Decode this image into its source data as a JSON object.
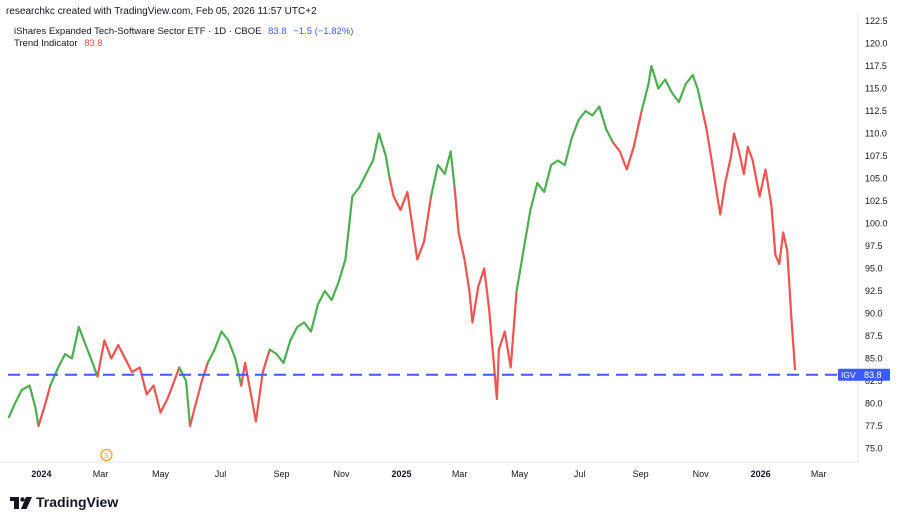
{
  "header": {
    "attribution": "researchkc created with TradingView.com, Feb 05, 2026 11:57 UTC+2"
  },
  "legend": {
    "symbol_name": "iShares Expanded Tech-Software Sector ETF · 1D · CBOE",
    "symbol_last": "83.8",
    "symbol_change": "−1.5 (−1.82%)",
    "indicator_name": "Trend Indicator",
    "indicator_value": "83.8"
  },
  "price_label": {
    "ticker": "IGV",
    "value": "83.8"
  },
  "branding": {
    "name": "TradingView"
  },
  "event_marker": {
    "letter": "S",
    "date": "2024-03-01"
  },
  "colors": {
    "uptrend": "#4caf50",
    "downtrend": "#f05350",
    "price_line": "#3d5afe",
    "accent_change": "#3d5afe",
    "indicator_value": "#f05350",
    "marker": "#f5a623"
  },
  "chart_data": {
    "type": "line",
    "ylim": [
      72.5,
      122.5
    ],
    "y_ticks": [
      "122.5",
      "120.0",
      "117.5",
      "115.0",
      "112.5",
      "110.0",
      "107.5",
      "105.0",
      "102.5",
      "100.0",
      "97.5",
      "95.0",
      "92.5",
      "90.0",
      "87.5",
      "85.0",
      "82.5",
      "80.0",
      "77.5",
      "75.0"
    ],
    "x_ticks": [
      {
        "label": "2024",
        "date": "2024-01-01",
        "bold": true
      },
      {
        "label": "Mar",
        "date": "2024-03-01",
        "bold": false
      },
      {
        "label": "May",
        "date": "2024-05-01",
        "bold": false
      },
      {
        "label": "Jul",
        "date": "2024-07-01",
        "bold": false
      },
      {
        "label": "Sep",
        "date": "2024-09-01",
        "bold": false
      },
      {
        "label": "Nov",
        "date": "2024-11-01",
        "bold": false
      },
      {
        "label": "2025",
        "date": "2025-01-01",
        "bold": true
      },
      {
        "label": "Mar",
        "date": "2025-03-01",
        "bold": false
      },
      {
        "label": "May",
        "date": "2025-05-01",
        "bold": false
      },
      {
        "label": "Jul",
        "date": "2025-07-01",
        "bold": false
      },
      {
        "label": "Sep",
        "date": "2025-09-01",
        "bold": false
      },
      {
        "label": "Nov",
        "date": "2025-11-01",
        "bold": false
      },
      {
        "label": "2026",
        "date": "2026-01-01",
        "bold": true
      },
      {
        "label": "Mar",
        "date": "2026-03-01",
        "bold": false
      }
    ],
    "x_range": [
      "2023-11-28",
      "2026-04-10"
    ],
    "reference_line": {
      "value": 83.2,
      "style": "dashed"
    },
    "series": [
      {
        "points": [
          {
            "date": "2023-11-29",
            "value": 78.5,
            "trend": "up"
          },
          {
            "date": "2023-12-05",
            "value": 80.0,
            "trend": "up"
          },
          {
            "date": "2023-12-12",
            "value": 81.5,
            "trend": "up"
          },
          {
            "date": "2023-12-20",
            "value": 82.0,
            "trend": "up"
          },
          {
            "date": "2023-12-26",
            "value": 79.5,
            "trend": "up"
          },
          {
            "date": "2023-12-29",
            "value": 77.5,
            "trend": "down"
          },
          {
            "date": "2024-01-05",
            "value": 80.0,
            "trend": "down"
          },
          {
            "date": "2024-01-10",
            "value": 82.0,
            "trend": "up"
          },
          {
            "date": "2024-01-18",
            "value": 84.0,
            "trend": "up"
          },
          {
            "date": "2024-01-25",
            "value": 85.5,
            "trend": "up"
          },
          {
            "date": "2024-02-01",
            "value": 85.0,
            "trend": "up"
          },
          {
            "date": "2024-02-08",
            "value": 88.5,
            "trend": "up"
          },
          {
            "date": "2024-02-15",
            "value": 86.5,
            "trend": "up"
          },
          {
            "date": "2024-02-22",
            "value": 84.5,
            "trend": "up"
          },
          {
            "date": "2024-02-27",
            "value": 83.0,
            "trend": "down"
          },
          {
            "date": "2024-03-05",
            "value": 87.0,
            "trend": "down"
          },
          {
            "date": "2024-03-12",
            "value": 85.0,
            "trend": "down"
          },
          {
            "date": "2024-03-19",
            "value": 86.5,
            "trend": "down"
          },
          {
            "date": "2024-03-26",
            "value": 85.0,
            "trend": "down"
          },
          {
            "date": "2024-04-02",
            "value": 83.5,
            "trend": "down"
          },
          {
            "date": "2024-04-10",
            "value": 84.0,
            "trend": "down"
          },
          {
            "date": "2024-04-17",
            "value": 81.0,
            "trend": "down"
          },
          {
            "date": "2024-04-24",
            "value": 82.0,
            "trend": "down"
          },
          {
            "date": "2024-05-01",
            "value": 79.0,
            "trend": "down"
          },
          {
            "date": "2024-05-08",
            "value": 80.5,
            "trend": "down"
          },
          {
            "date": "2024-05-15",
            "value": 82.5,
            "trend": "down"
          },
          {
            "date": "2024-05-20",
            "value": 84.0,
            "trend": "up"
          },
          {
            "date": "2024-05-27",
            "value": 82.5,
            "trend": "up"
          },
          {
            "date": "2024-05-31",
            "value": 77.5,
            "trend": "down"
          },
          {
            "date": "2024-06-06",
            "value": 80.0,
            "trend": "down"
          },
          {
            "date": "2024-06-12",
            "value": 82.5,
            "trend": "down"
          },
          {
            "date": "2024-06-18",
            "value": 84.5,
            "trend": "up"
          },
          {
            "date": "2024-06-25",
            "value": 86.0,
            "trend": "up"
          },
          {
            "date": "2024-07-02",
            "value": 88.0,
            "trend": "up"
          },
          {
            "date": "2024-07-09",
            "value": 87.0,
            "trend": "up"
          },
          {
            "date": "2024-07-16",
            "value": 85.0,
            "trend": "up"
          },
          {
            "date": "2024-07-22",
            "value": 82.0,
            "trend": "down"
          },
          {
            "date": "2024-07-26",
            "value": 84.5,
            "trend": "down"
          },
          {
            "date": "2024-08-01",
            "value": 81.0,
            "trend": "down"
          },
          {
            "date": "2024-08-06",
            "value": 78.0,
            "trend": "down"
          },
          {
            "date": "2024-08-13",
            "value": 83.5,
            "trend": "down"
          },
          {
            "date": "2024-08-20",
            "value": 86.0,
            "trend": "up"
          },
          {
            "date": "2024-08-27",
            "value": 85.5,
            "trend": "up"
          },
          {
            "date": "2024-09-03",
            "value": 84.5,
            "trend": "up"
          },
          {
            "date": "2024-09-10",
            "value": 87.0,
            "trend": "up"
          },
          {
            "date": "2024-09-17",
            "value": 88.5,
            "trend": "up"
          },
          {
            "date": "2024-09-24",
            "value": 89.0,
            "trend": "up"
          },
          {
            "date": "2024-10-01",
            "value": 88.0,
            "trend": "up"
          },
          {
            "date": "2024-10-08",
            "value": 91.0,
            "trend": "up"
          },
          {
            "date": "2024-10-15",
            "value": 92.5,
            "trend": "up"
          },
          {
            "date": "2024-10-22",
            "value": 91.5,
            "trend": "up"
          },
          {
            "date": "2024-10-29",
            "value": 93.5,
            "trend": "up"
          },
          {
            "date": "2024-11-05",
            "value": 96.0,
            "trend": "up"
          },
          {
            "date": "2024-11-12",
            "value": 103.0,
            "trend": "up"
          },
          {
            "date": "2024-11-19",
            "value": 104.0,
            "trend": "up"
          },
          {
            "date": "2024-11-26",
            "value": 105.5,
            "trend": "up"
          },
          {
            "date": "2024-12-03",
            "value": 107.0,
            "trend": "up"
          },
          {
            "date": "2024-12-09",
            "value": 110.0,
            "trend": "up"
          },
          {
            "date": "2024-12-16",
            "value": 107.5,
            "trend": "up"
          },
          {
            "date": "2024-12-20",
            "value": 105.0,
            "trend": "down"
          },
          {
            "date": "2024-12-24",
            "value": 103.0,
            "trend": "down"
          },
          {
            "date": "2024-12-31",
            "value": 101.5,
            "trend": "down"
          },
          {
            "date": "2025-01-07",
            "value": 103.5,
            "trend": "down"
          },
          {
            "date": "2025-01-13",
            "value": 99.0,
            "trend": "down"
          },
          {
            "date": "2025-01-17",
            "value": 96.0,
            "trend": "down"
          },
          {
            "date": "2025-01-24",
            "value": 98.0,
            "trend": "down"
          },
          {
            "date": "2025-01-31",
            "value": 103.0,
            "trend": "up"
          },
          {
            "date": "2025-02-07",
            "value": 106.5,
            "trend": "up"
          },
          {
            "date": "2025-02-14",
            "value": 105.5,
            "trend": "up"
          },
          {
            "date": "2025-02-20",
            "value": 108.0,
            "trend": "up"
          },
          {
            "date": "2025-02-24",
            "value": 104.0,
            "trend": "down"
          },
          {
            "date": "2025-02-28",
            "value": 99.0,
            "trend": "down"
          },
          {
            "date": "2025-03-06",
            "value": 96.0,
            "trend": "down"
          },
          {
            "date": "2025-03-11",
            "value": 92.5,
            "trend": "down"
          },
          {
            "date": "2025-03-14",
            "value": 89.0,
            "trend": "down"
          },
          {
            "date": "2025-03-20",
            "value": 93.0,
            "trend": "down"
          },
          {
            "date": "2025-03-26",
            "value": 95.0,
            "trend": "down"
          },
          {
            "date": "2025-03-31",
            "value": 90.5,
            "trend": "down"
          },
          {
            "date": "2025-04-04",
            "value": 85.5,
            "trend": "down"
          },
          {
            "date": "2025-04-08",
            "value": 80.5,
            "trend": "down"
          },
          {
            "date": "2025-04-10",
            "value": 86.0,
            "trend": "down"
          },
          {
            "date": "2025-04-16",
            "value": 88.0,
            "trend": "down"
          },
          {
            "date": "2025-04-22",
            "value": 84.0,
            "trend": "down"
          },
          {
            "date": "2025-04-28",
            "value": 92.5,
            "trend": "up"
          },
          {
            "date": "2025-05-05",
            "value": 97.0,
            "trend": "up"
          },
          {
            "date": "2025-05-12",
            "value": 101.5,
            "trend": "up"
          },
          {
            "date": "2025-05-19",
            "value": 104.5,
            "trend": "up"
          },
          {
            "date": "2025-05-26",
            "value": 103.5,
            "trend": "up"
          },
          {
            "date": "2025-06-02",
            "value": 106.5,
            "trend": "up"
          },
          {
            "date": "2025-06-09",
            "value": 107.0,
            "trend": "up"
          },
          {
            "date": "2025-06-16",
            "value": 106.5,
            "trend": "up"
          },
          {
            "date": "2025-06-23",
            "value": 109.5,
            "trend": "up"
          },
          {
            "date": "2025-06-30",
            "value": 111.5,
            "trend": "up"
          },
          {
            "date": "2025-07-07",
            "value": 112.5,
            "trend": "up"
          },
          {
            "date": "2025-07-14",
            "value": 112.0,
            "trend": "up"
          },
          {
            "date": "2025-07-21",
            "value": 113.0,
            "trend": "up"
          },
          {
            "date": "2025-07-28",
            "value": 110.5,
            "trend": "up"
          },
          {
            "date": "2025-08-04",
            "value": 109.0,
            "trend": "down"
          },
          {
            "date": "2025-08-11",
            "value": 108.0,
            "trend": "down"
          },
          {
            "date": "2025-08-18",
            "value": 106.0,
            "trend": "down"
          },
          {
            "date": "2025-08-25",
            "value": 108.5,
            "trend": "down"
          },
          {
            "date": "2025-09-02",
            "value": 112.5,
            "trend": "up"
          },
          {
            "date": "2025-09-09",
            "value": 115.5,
            "trend": "up"
          },
          {
            "date": "2025-09-12",
            "value": 117.5,
            "trend": "up"
          },
          {
            "date": "2025-09-19",
            "value": 115.0,
            "trend": "up"
          },
          {
            "date": "2025-09-26",
            "value": 116.0,
            "trend": "up"
          },
          {
            "date": "2025-10-03",
            "value": 114.5,
            "trend": "up"
          },
          {
            "date": "2025-10-10",
            "value": 113.5,
            "trend": "up"
          },
          {
            "date": "2025-10-17",
            "value": 115.5,
            "trend": "up"
          },
          {
            "date": "2025-10-24",
            "value": 116.5,
            "trend": "up"
          },
          {
            "date": "2025-10-29",
            "value": 115.0,
            "trend": "up"
          },
          {
            "date": "2025-11-03",
            "value": 112.5,
            "trend": "down"
          },
          {
            "date": "2025-11-07",
            "value": 110.5,
            "trend": "down"
          },
          {
            "date": "2025-11-13",
            "value": 106.5,
            "trend": "down"
          },
          {
            "date": "2025-11-18",
            "value": 103.0,
            "trend": "down"
          },
          {
            "date": "2025-11-21",
            "value": 101.0,
            "trend": "down"
          },
          {
            "date": "2025-11-26",
            "value": 104.5,
            "trend": "down"
          },
          {
            "date": "2025-12-02",
            "value": 107.5,
            "trend": "down"
          },
          {
            "date": "2025-12-05",
            "value": 110.0,
            "trend": "down"
          },
          {
            "date": "2025-12-10",
            "value": 108.0,
            "trend": "down"
          },
          {
            "date": "2025-12-15",
            "value": 105.5,
            "trend": "down"
          },
          {
            "date": "2025-12-19",
            "value": 108.5,
            "trend": "down"
          },
          {
            "date": "2025-12-24",
            "value": 107.0,
            "trend": "down"
          },
          {
            "date": "2025-12-31",
            "value": 103.0,
            "trend": "down"
          },
          {
            "date": "2026-01-06",
            "value": 106.0,
            "trend": "down"
          },
          {
            "date": "2026-01-12",
            "value": 102.0,
            "trend": "down"
          },
          {
            "date": "2026-01-16",
            "value": 96.5,
            "trend": "down"
          },
          {
            "date": "2026-01-20",
            "value": 95.5,
            "trend": "down"
          },
          {
            "date": "2026-01-24",
            "value": 99.0,
            "trend": "down"
          },
          {
            "date": "2026-01-28",
            "value": 97.0,
            "trend": "down"
          },
          {
            "date": "2026-02-01",
            "value": 90.0,
            "trend": "down"
          },
          {
            "date": "2026-02-05",
            "value": 83.8,
            "trend": "down"
          }
        ]
      }
    ]
  }
}
